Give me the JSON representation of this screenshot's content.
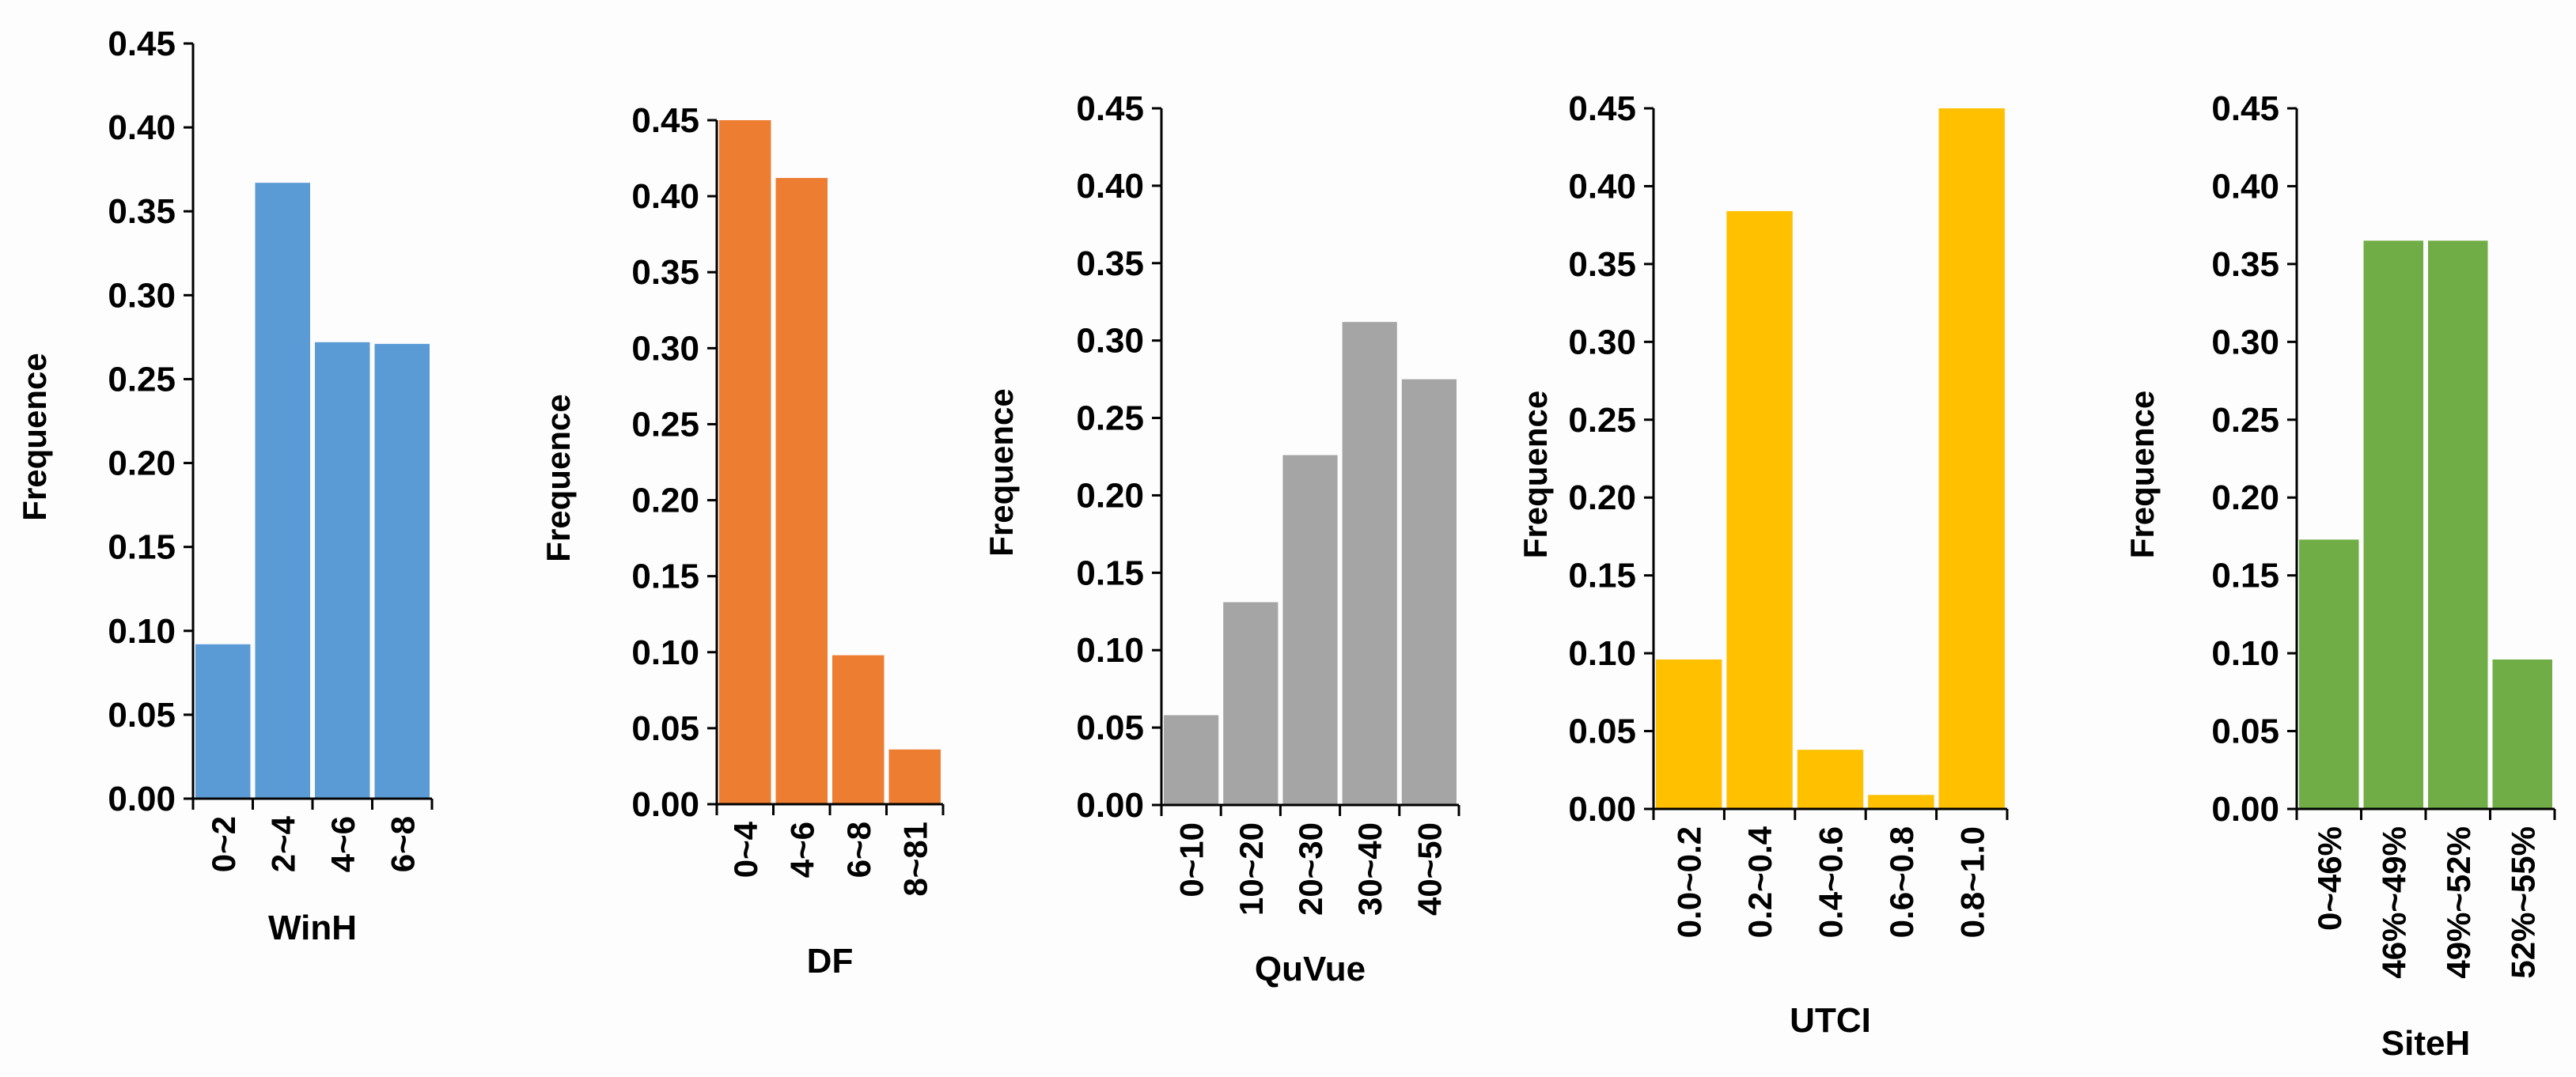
{
  "chart_data": [
    {
      "type": "bar",
      "title": "",
      "xlabel": "WinH",
      "ylabel": "Frequence",
      "ylim": [
        0,
        0.45
      ],
      "yticks": [
        "0.00",
        "0.05",
        "0.10",
        "0.15",
        "0.20",
        "0.25",
        "0.30",
        "0.35",
        "0.40",
        "0.45"
      ],
      "categories": [
        "0~2",
        "2~4",
        "4~6",
        "6~8"
      ],
      "values": [
        0.092,
        0.367,
        0.272,
        0.271
      ],
      "color": "#5b9bd5",
      "grid": false
    },
    {
      "type": "bar",
      "title": "",
      "xlabel": "DF",
      "ylabel": "Frequence",
      "ylim": [
        0,
        0.45
      ],
      "yticks": [
        "0.00",
        "0.05",
        "0.10",
        "0.15",
        "0.20",
        "0.25",
        "0.30",
        "0.35",
        "0.40",
        "0.45"
      ],
      "categories": [
        "0~4",
        "4~6",
        "6~8",
        "8~81"
      ],
      "values": [
        0.45,
        0.412,
        0.098,
        0.036
      ],
      "color": "#ed7d31",
      "grid": false
    },
    {
      "type": "bar",
      "title": "",
      "xlabel": "QuVue",
      "ylabel": "Frequence",
      "ylim": [
        0,
        0.45
      ],
      "yticks": [
        "0.00",
        "0.05",
        "0.10",
        "0.15",
        "0.20",
        "0.25",
        "0.30",
        "0.35",
        "0.40",
        "0.45"
      ],
      "categories": [
        "0~10",
        "10~20",
        "20~30",
        "30~40",
        "40~50"
      ],
      "values": [
        0.058,
        0.131,
        0.226,
        0.312,
        0.275
      ],
      "color": "#a5a5a5",
      "grid": false
    },
    {
      "type": "bar",
      "title": "",
      "xlabel": "UTCI",
      "ylabel": "Frequence",
      "ylim": [
        0,
        0.45
      ],
      "yticks": [
        "0.00",
        "0.05",
        "0.10",
        "0.15",
        "0.20",
        "0.25",
        "0.30",
        "0.35",
        "0.40",
        "0.45"
      ],
      "categories": [
        "0.0~0.2",
        "0.2~0.4",
        "0.4~0.6",
        "0.6~0.8",
        "0.8~1.0"
      ],
      "values": [
        0.096,
        0.384,
        0.038,
        0.009,
        0.45
      ],
      "color": "#ffc000",
      "grid": false
    },
    {
      "type": "bar",
      "title": "",
      "xlabel": "SiteH",
      "ylabel": "Frequence",
      "ylim": [
        0,
        0.45
      ],
      "yticks": [
        "0.00",
        "0.05",
        "0.10",
        "0.15",
        "0.20",
        "0.25",
        "0.30",
        "0.35",
        "0.40",
        "0.45"
      ],
      "categories": [
        "0~46%",
        "46%~49%",
        "49%~52%",
        "52%~55%"
      ],
      "values": [
        0.173,
        0.365,
        0.365,
        0.096
      ],
      "color": "#70ad47",
      "grid": false
    }
  ]
}
